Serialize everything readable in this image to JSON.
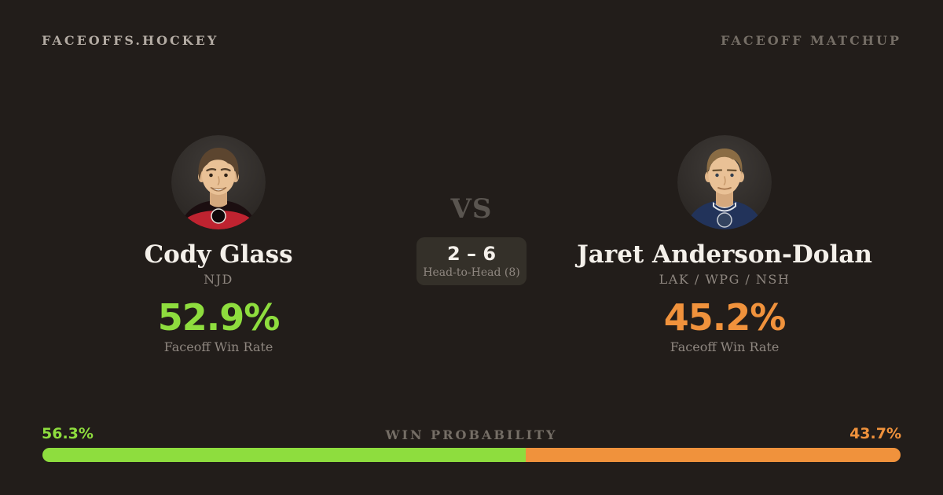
{
  "colors": {
    "background": "#221d1a",
    "surface": "#343029",
    "green": "#8edd3e",
    "orange": "#f0923c",
    "text-primary": "#f4f0ea",
    "text-muted": "#8f8780",
    "text-faint": "#756e66",
    "brand": "#b3aba3",
    "vs": "#5a5550"
  },
  "header": {
    "brand": "FACEOFFS.HOCKEY",
    "matchup_label": "FACEOFF MATCHUP"
  },
  "players": {
    "left": {
      "name": "Cody Glass",
      "team": "NJD",
      "faceoff_win_rate": "52.9%",
      "stat_label": "Faceoff Win Rate",
      "win_probability": "56.3%"
    },
    "right": {
      "name": "Jaret Anderson-Dolan",
      "team": "LAK / WPG / NSH",
      "faceoff_win_rate": "45.2%",
      "stat_label": "Faceoff Win Rate",
      "win_probability": "43.7%"
    }
  },
  "matchup": {
    "vs_label": "VS",
    "head_to_head_score": "2 – 6",
    "head_to_head_label": "Head-to-Head (8)"
  },
  "win_probability": {
    "label": "WIN PROBABILITY",
    "left_pct": 56.3,
    "right_pct": 43.7
  }
}
